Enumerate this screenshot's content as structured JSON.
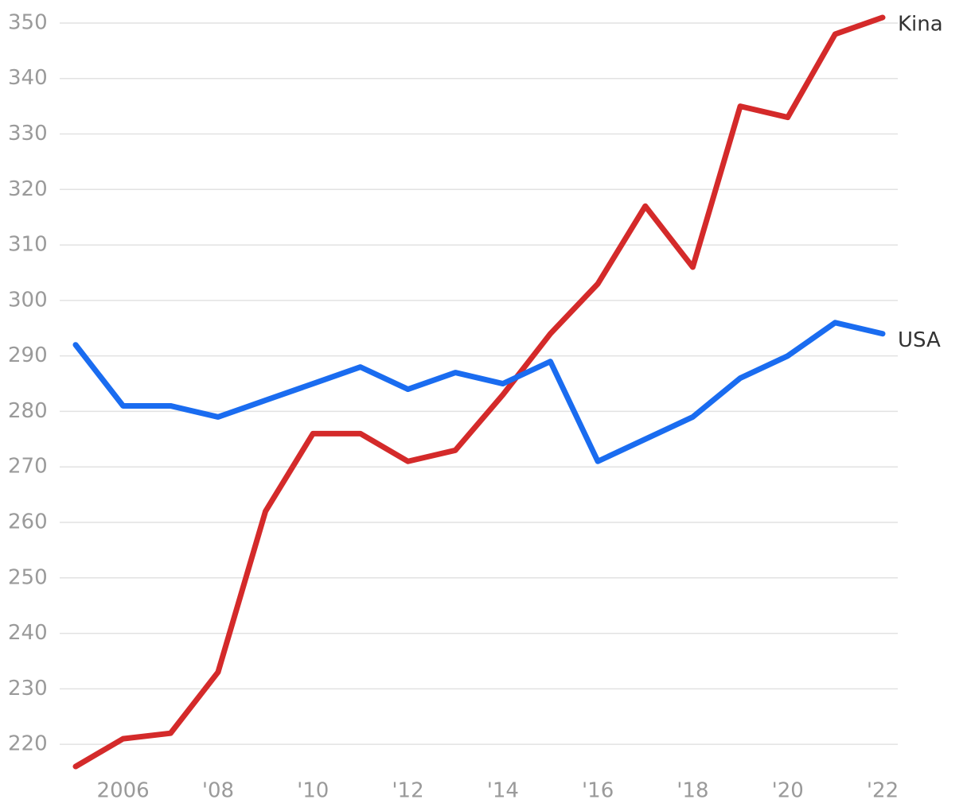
{
  "chart_data": {
    "type": "line",
    "x": [
      2005,
      2006,
      2007,
      2008,
      2009,
      2010,
      2011,
      2012,
      2013,
      2014,
      2015,
      2016,
      2017,
      2018,
      2019,
      2020,
      2021,
      2022
    ],
    "series": [
      {
        "name": "Kina",
        "color": "#d42a2a",
        "values": [
          216,
          221,
          222,
          233,
          262,
          276,
          276,
          271,
          273,
          283,
          294,
          303,
          317,
          306,
          335,
          333,
          348,
          351
        ]
      },
      {
        "name": "USA",
        "color": "#1a6cf0",
        "values": [
          292,
          281,
          281,
          279,
          282,
          285,
          288,
          284,
          287,
          285,
          289,
          271,
          275,
          279,
          286,
          290,
          296,
          294
        ]
      }
    ],
    "xlim": [
      2005,
      2022
    ],
    "xticks": [
      2006,
      {
        "value": 2008,
        "label": "'08"
      },
      {
        "value": 2010,
        "label": "'10"
      },
      {
        "value": 2012,
        "label": "'12"
      },
      {
        "value": 2014,
        "label": "'14"
      },
      {
        "value": 2016,
        "label": "'16"
      },
      {
        "value": 2018,
        "label": "'18"
      },
      {
        "value": 2020,
        "label": "'20"
      },
      {
        "value": 2022,
        "label": "'22"
      }
    ],
    "ylim": [
      214,
      352
    ],
    "yticks": [
      220,
      230,
      240,
      250,
      260,
      270,
      280,
      290,
      300,
      310,
      320,
      330,
      340,
      350
    ],
    "grid": true
  }
}
